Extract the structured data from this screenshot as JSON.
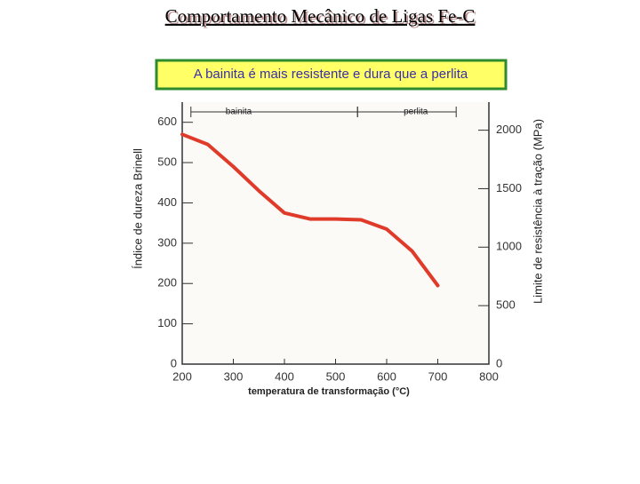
{
  "title": "Comportamento Mecânico de Ligas Fe-C",
  "callout": "A bainita é mais resistente e dura que a perlita",
  "chart_data": {
    "type": "line",
    "xlabel": "temperatura de transformação (°C)",
    "ylabel": "Índice de dureza Brinell",
    "y2label": "Limite de resistência à tração (MPa)",
    "x": [
      200,
      250,
      300,
      350,
      400,
      450,
      500,
      550,
      600,
      650,
      700
    ],
    "series": [
      {
        "name": "dureza",
        "color": "#e03b2a",
        "values": [
          570,
          545,
          490,
          430,
          375,
          360,
          360,
          358,
          335,
          280,
          195
        ]
      }
    ],
    "xlim": [
      200,
      800
    ],
    "xticks": [
      200,
      300,
      400,
      500,
      600,
      700,
      800
    ],
    "ylim": [
      0,
      650
    ],
    "yticks": [
      0,
      100,
      200,
      300,
      400,
      500,
      600
    ],
    "y2lim": [
      0,
      2240
    ],
    "y2ticks": [
      0,
      500,
      1000,
      1500,
      2000
    ],
    "annotations": [
      {
        "text": "bainita",
        "range": [
          217,
          543
        ]
      },
      {
        "text": "perlita",
        "range": [
          543,
          736
        ]
      }
    ],
    "grid": false
  }
}
